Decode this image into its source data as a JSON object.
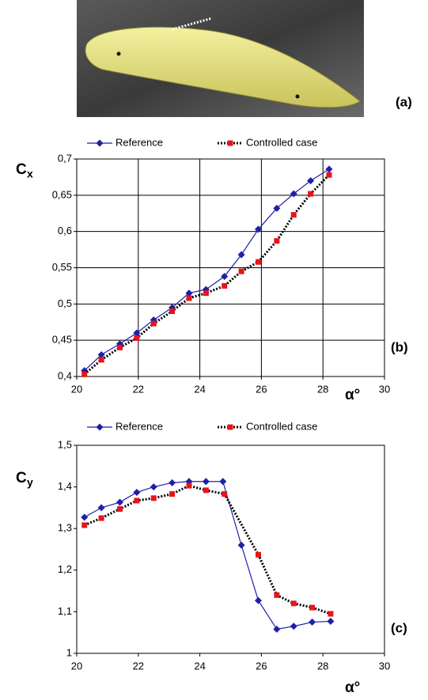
{
  "photo_label": "(a)",
  "chart_data": [
    {
      "type": "line",
      "panel_label": "(b)",
      "ylabel": "C",
      "ylabel_sub": "x",
      "xlabel": "α°",
      "xlim": [
        20,
        30
      ],
      "xticks": [
        20,
        22,
        24,
        26,
        28,
        30
      ],
      "ylim": [
        0.4,
        0.7
      ],
      "yticks": [
        {
          "value": 0.4,
          "label": "0,4"
        },
        {
          "value": 0.45,
          "label": "0,45"
        },
        {
          "value": 0.5,
          "label": "0,5"
        },
        {
          "value": 0.55,
          "label": "0,55"
        },
        {
          "value": 0.6,
          "label": "0,6"
        },
        {
          "value": 0.65,
          "label": "0,65"
        },
        {
          "value": 0.7,
          "label": "0,7"
        }
      ],
      "grid": true,
      "series": [
        {
          "name": "Reference",
          "color": "#1f1fa8",
          "marker": "diamond",
          "marker_color": "#1f1fa8",
          "dash": "solid",
          "x": [
            20.25,
            20.8,
            21.4,
            21.95,
            22.5,
            23.1,
            23.65,
            24.2,
            24.8,
            25.35,
            25.9,
            26.5,
            27.05,
            27.6,
            28.2
          ],
          "values": [
            0.408,
            0.43,
            0.445,
            0.46,
            0.478,
            0.495,
            0.515,
            0.52,
            0.538,
            0.568,
            0.603,
            0.632,
            0.652,
            0.67,
            0.686
          ]
        },
        {
          "name": "Controlled case",
          "color": "#000000",
          "marker": "square",
          "marker_color": "#e8141b",
          "dash": "dotted",
          "x": [
            20.25,
            20.8,
            21.4,
            21.95,
            22.5,
            23.1,
            23.65,
            24.2,
            24.8,
            25.35,
            25.9,
            26.5,
            27.05,
            27.6,
            28.2
          ],
          "values": [
            0.403,
            0.423,
            0.44,
            0.453,
            0.473,
            0.49,
            0.508,
            0.515,
            0.525,
            0.545,
            0.558,
            0.587,
            0.623,
            0.652,
            0.678
          ]
        }
      ]
    },
    {
      "type": "line",
      "panel_label": "(c)",
      "ylabel": "C",
      "ylabel_sub": "y",
      "xlabel": "α°",
      "xlim": [
        20,
        30
      ],
      "xticks": [
        20,
        22,
        24,
        26,
        28,
        30
      ],
      "ylim": [
        1,
        1.5
      ],
      "yticks": [
        1,
        {
          "value": 1.1,
          "label": "1,1"
        },
        {
          "value": 1.2,
          "label": "1,2"
        },
        {
          "value": 1.3,
          "label": "1,3"
        },
        {
          "value": 1.4,
          "label": "1,4"
        },
        {
          "value": 1.5,
          "label": "1,5"
        }
      ],
      "grid": false,
      "series": [
        {
          "name": "Reference",
          "color": "#1f1fa8",
          "marker": "diamond",
          "marker_color": "#1f1fa8",
          "dash": "solid",
          "x": [
            20.25,
            20.8,
            21.4,
            21.95,
            22.5,
            23.1,
            23.65,
            24.2,
            24.75,
            25.35,
            25.9,
            26.5,
            27.05,
            27.65,
            28.25
          ],
          "values": [
            1.327,
            1.35,
            1.363,
            1.387,
            1.4,
            1.41,
            1.413,
            1.413,
            1.413,
            1.26,
            1.127,
            1.058,
            1.065,
            1.075,
            1.077
          ]
        },
        {
          "name": "Controlled case",
          "color": "#000000",
          "marker": "square",
          "marker_color": "#e8141b",
          "dash": "dotted",
          "x": [
            20.25,
            20.8,
            21.4,
            21.95,
            22.5,
            23.1,
            23.65,
            24.2,
            24.8,
            25.9,
            26.5,
            27.05,
            27.65,
            28.25
          ],
          "values": [
            1.308,
            1.325,
            1.347,
            1.367,
            1.373,
            1.383,
            1.403,
            1.392,
            1.383,
            1.237,
            1.14,
            1.12,
            1.11,
            1.095
          ]
        }
      ]
    }
  ]
}
